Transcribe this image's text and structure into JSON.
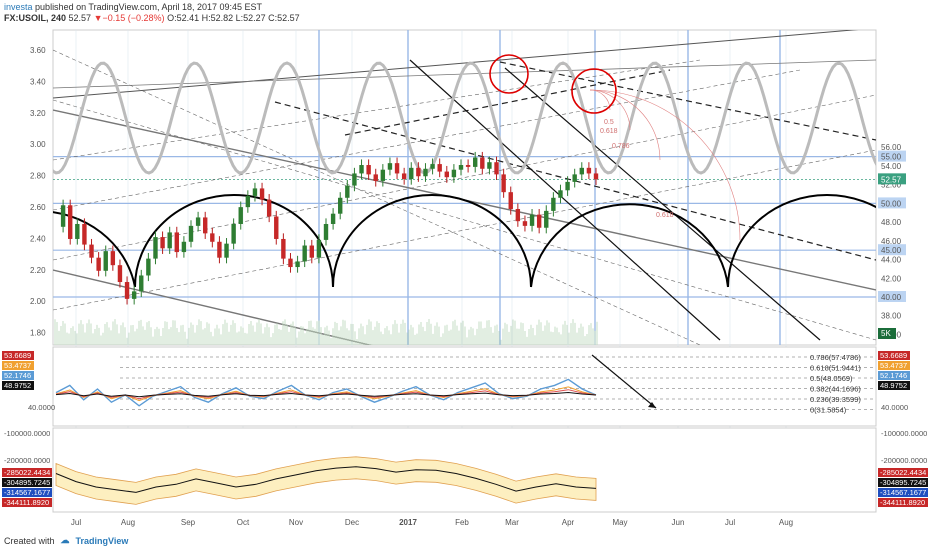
{
  "header": {
    "author": "investa",
    "published": "published on TradingView.com, April 18, 2017 09:45 EST",
    "symbol": "FX:USOIL, 240",
    "last": "52.57",
    "change": "−0.15 (−0.28%)",
    "ohlc": "O:52.41 H:52.82 L:52.27 C:52.57"
  },
  "footer": {
    "created_with": "Created with",
    "brand": "TradingView"
  },
  "chart_data": [
    {
      "type": "line",
      "panel": "price",
      "y_ticks_left": [
        "3.60",
        "3.40",
        "3.20",
        "3.00",
        "2.80",
        "2.60",
        "2.40",
        "2.20",
        "2.00",
        "1.80"
      ],
      "y_ticks_right": [
        "56.00",
        "55.00",
        "54.00",
        "52.00",
        "50.00",
        "48.00",
        "46.00",
        "45.00",
        "44.00",
        "42.00",
        "40.00",
        "38.00",
        "36.00"
      ],
      "marked_levels": [
        "55.00",
        "52.57",
        "50.00",
        "45.00",
        "40.00"
      ],
      "last_price_label": "52.57",
      "x_labels": [
        "Jul",
        "Aug",
        "Sep",
        "Oct",
        "Nov",
        "Dec",
        "2017",
        "Feb",
        "Mar",
        "Apr",
        "May",
        "Jun",
        "Jul",
        "Aug"
      ],
      "volume_badge": "5K",
      "fib_labels": [
        "0.5",
        "0.618",
        "0.786",
        "0.618"
      ],
      "ylim": [
        36,
        57
      ],
      "series": [
        {
          "values": [
            47.5,
            49.8,
            46.2,
            47.8,
            45.6,
            44.2,
            42.8,
            44.9,
            43.4,
            41.6,
            39.8,
            40.6,
            42.3,
            44.1,
            46.4,
            45.2,
            46.9,
            44.8,
            45.9,
            47.6,
            48.5,
            46.8,
            45.9,
            44.2,
            45.7,
            47.8,
            49.6,
            50.8,
            51.6,
            50.4,
            48.6,
            46.2,
            44.1,
            43.2,
            43.8,
            45.5,
            44.2,
            46.1,
            47.8,
            48.9,
            50.6,
            51.9,
            53.2,
            54.1,
            53.1,
            52.4,
            53.6,
            54.3,
            53.2,
            52.6,
            53.8,
            52.9,
            53.7,
            54.2,
            53.4,
            52.8,
            53.6,
            54.1,
            53.9,
            54.9,
            53.7,
            54.4,
            53.1,
            51.2,
            49.4,
            48.1,
            47.6,
            48.8,
            47.4,
            49.2,
            50.6,
            51.4,
            52.3,
            53.1,
            53.8,
            53.2,
            52.57
          ]
        }
      ]
    },
    {
      "type": "line",
      "panel": "oscillator",
      "tick_labels": [
        "40.0000"
      ],
      "value_labels": [
        "53.6689",
        "53.4737",
        "52.1746",
        "48.9752"
      ],
      "fib_levels": [
        "0.786(57.4786)",
        "0.618(51.9441)",
        "0.5(48.0569)",
        "0.382(44.1696)",
        "0.236(39.3599)",
        "0(31.5854)"
      ],
      "series": [
        {
          "name": "",
          "values": [
            52,
            58,
            46,
            55,
            44,
            50,
            41,
            49,
            53,
            57,
            48,
            44,
            51,
            56,
            49,
            47,
            53,
            58,
            50,
            46,
            52,
            55,
            49,
            44,
            48,
            53,
            57,
            50,
            46,
            52,
            56,
            60,
            51,
            47,
            49,
            55,
            58,
            63,
            55,
            50
          ]
        }
      ]
    },
    {
      "type": "area",
      "panel": "indicator",
      "tick_labels": [
        "-100000.0000",
        "-200000.0000"
      ],
      "value_labels": [
        "-285022.4434",
        "-304895.7245",
        "-314567.1677",
        "-344111.8920"
      ],
      "series": [
        {
          "name": "",
          "values": [
            -250000,
            -280000,
            -300000,
            -310000,
            -320000,
            -300000,
            -290000,
            -270000,
            -285000,
            -300000,
            -290000,
            -270000,
            -255000,
            -240000,
            -230000,
            -225000,
            -232000,
            -245000,
            -236000,
            -238000,
            -250000,
            -268000,
            -290000,
            -315000,
            -300000,
            -288000,
            -300000,
            -305000
          ]
        }
      ]
    }
  ]
}
